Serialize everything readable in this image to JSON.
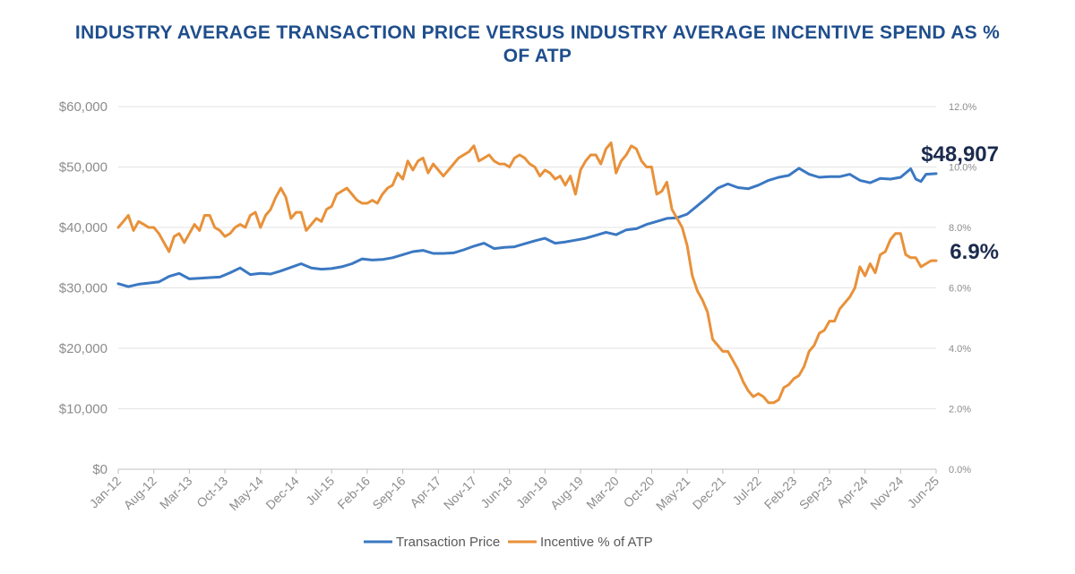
{
  "chart_data": {
    "type": "line",
    "title_line1": "INDUSTRY AVERAGE TRANSACTION PRICE VERSUS INDUSTRY AVERAGE INCENTIVE SPEND AS %",
    "title_line2": "OF ATP",
    "start_month": "2012-01",
    "end_month": "2025-06",
    "x_tick_labels": [
      "Jan-12",
      "Aug-12",
      "Mar-13",
      "Oct-13",
      "May-14",
      "Dec-14",
      "Jul-15",
      "Feb-16",
      "Sep-16",
      "Apr-17",
      "Nov-17",
      "Jun-18",
      "Jan-19",
      "Aug-19",
      "Mar-20",
      "Oct-20",
      "May-21",
      "Dec-21",
      "Jul-22",
      "Feb-23",
      "Sep-23",
      "Apr-24",
      "Nov-24",
      "Jun-25"
    ],
    "y_left": {
      "min": 0,
      "max": 60000,
      "ticks": [
        "$0",
        "$10,000",
        "$20,000",
        "$30,000",
        "$40,000",
        "$50,000",
        "$60,000"
      ]
    },
    "y_right": {
      "min": 0,
      "max": 12,
      "ticks": [
        "0.0%",
        "2.0%",
        "4.0%",
        "6.0%",
        "8.0%",
        "10.0%",
        "12.0%"
      ]
    },
    "grid": true,
    "legend_position": "bottom-center",
    "series": [
      {
        "name": "Transaction Price",
        "axis": "left",
        "color": "#3b78c2",
        "points": [
          [
            "2012-01",
            30700
          ],
          [
            "2012-03",
            30200
          ],
          [
            "2012-05",
            30600
          ],
          [
            "2012-07",
            30800
          ],
          [
            "2012-09",
            31000
          ],
          [
            "2012-11",
            31900
          ],
          [
            "2013-01",
            32400
          ],
          [
            "2013-03",
            31500
          ],
          [
            "2013-05",
            31600
          ],
          [
            "2013-07",
            31700
          ],
          [
            "2013-09",
            31800
          ],
          [
            "2013-11",
            32500
          ],
          [
            "2014-01",
            33300
          ],
          [
            "2014-03",
            32200
          ],
          [
            "2014-05",
            32400
          ],
          [
            "2014-07",
            32300
          ],
          [
            "2014-09",
            32800
          ],
          [
            "2014-11",
            33400
          ],
          [
            "2015-01",
            34000
          ],
          [
            "2015-03",
            33300
          ],
          [
            "2015-05",
            33100
          ],
          [
            "2015-07",
            33200
          ],
          [
            "2015-09",
            33500
          ],
          [
            "2015-11",
            34000
          ],
          [
            "2016-01",
            34800
          ],
          [
            "2016-03",
            34600
          ],
          [
            "2016-05",
            34700
          ],
          [
            "2016-07",
            35000
          ],
          [
            "2016-09",
            35500
          ],
          [
            "2016-11",
            36000
          ],
          [
            "2017-01",
            36200
          ],
          [
            "2017-03",
            35700
          ],
          [
            "2017-05",
            35700
          ],
          [
            "2017-07",
            35800
          ],
          [
            "2017-09",
            36300
          ],
          [
            "2017-11",
            36900
          ],
          [
            "2018-01",
            37400
          ],
          [
            "2018-03",
            36500
          ],
          [
            "2018-05",
            36700
          ],
          [
            "2018-07",
            36800
          ],
          [
            "2018-09",
            37300
          ],
          [
            "2018-11",
            37800
          ],
          [
            "2019-01",
            38200
          ],
          [
            "2019-03",
            37400
          ],
          [
            "2019-05",
            37600
          ],
          [
            "2019-07",
            37900
          ],
          [
            "2019-09",
            38200
          ],
          [
            "2019-11",
            38700
          ],
          [
            "2020-01",
            39200
          ],
          [
            "2020-03",
            38800
          ],
          [
            "2020-05",
            39600
          ],
          [
            "2020-07",
            39800
          ],
          [
            "2020-09",
            40500
          ],
          [
            "2020-11",
            41000
          ],
          [
            "2021-01",
            41500
          ],
          [
            "2021-03",
            41600
          ],
          [
            "2021-05",
            42200
          ],
          [
            "2021-07",
            43600
          ],
          [
            "2021-09",
            45000
          ],
          [
            "2021-11",
            46500
          ],
          [
            "2022-01",
            47200
          ],
          [
            "2022-03",
            46600
          ],
          [
            "2022-05",
            46400
          ],
          [
            "2022-07",
            47000
          ],
          [
            "2022-09",
            47800
          ],
          [
            "2022-11",
            48300
          ],
          [
            "2023-01",
            48600
          ],
          [
            "2023-03",
            49800
          ],
          [
            "2023-05",
            48800
          ],
          [
            "2023-07",
            48300
          ],
          [
            "2023-09",
            48400
          ],
          [
            "2023-11",
            48400
          ],
          [
            "2024-01",
            48800
          ],
          [
            "2024-03",
            47800
          ],
          [
            "2024-05",
            47400
          ],
          [
            "2024-07",
            48100
          ],
          [
            "2024-09",
            48000
          ],
          [
            "2024-11",
            48300
          ],
          [
            "2025-01",
            49700
          ],
          [
            "2025-02",
            48000
          ],
          [
            "2025-03",
            47600
          ],
          [
            "2025-04",
            48800
          ],
          [
            "2025-06",
            48907
          ]
        ]
      },
      {
        "name": "Incentive % of ATP",
        "axis": "right",
        "color": "#e8913a",
        "points": [
          [
            "2012-01",
            8.0
          ],
          [
            "2012-02",
            8.2
          ],
          [
            "2012-03",
            8.4
          ],
          [
            "2012-04",
            7.9
          ],
          [
            "2012-05",
            8.2
          ],
          [
            "2012-06",
            8.1
          ],
          [
            "2012-07",
            8.0
          ],
          [
            "2012-08",
            8.0
          ],
          [
            "2012-09",
            7.8
          ],
          [
            "2012-10",
            7.5
          ],
          [
            "2012-11",
            7.2
          ],
          [
            "2012-12",
            7.7
          ],
          [
            "2013-01",
            7.8
          ],
          [
            "2013-02",
            7.5
          ],
          [
            "2013-03",
            7.8
          ],
          [
            "2013-04",
            8.1
          ],
          [
            "2013-05",
            7.9
          ],
          [
            "2013-06",
            8.4
          ],
          [
            "2013-07",
            8.4
          ],
          [
            "2013-08",
            8.0
          ],
          [
            "2013-09",
            7.9
          ],
          [
            "2013-10",
            7.7
          ],
          [
            "2013-11",
            7.8
          ],
          [
            "2013-12",
            8.0
          ],
          [
            "2014-01",
            8.1
          ],
          [
            "2014-02",
            8.0
          ],
          [
            "2014-03",
            8.4
          ],
          [
            "2014-04",
            8.5
          ],
          [
            "2014-05",
            8.0
          ],
          [
            "2014-06",
            8.4
          ],
          [
            "2014-07",
            8.6
          ],
          [
            "2014-08",
            9.0
          ],
          [
            "2014-09",
            9.3
          ],
          [
            "2014-10",
            9.0
          ],
          [
            "2014-11",
            8.3
          ],
          [
            "2014-12",
            8.5
          ],
          [
            "2015-01",
            8.5
          ],
          [
            "2015-02",
            7.9
          ],
          [
            "2015-03",
            8.1
          ],
          [
            "2015-04",
            8.3
          ],
          [
            "2015-05",
            8.2
          ],
          [
            "2015-06",
            8.6
          ],
          [
            "2015-07",
            8.7
          ],
          [
            "2015-08",
            9.1
          ],
          [
            "2015-09",
            9.2
          ],
          [
            "2015-10",
            9.3
          ],
          [
            "2015-11",
            9.1
          ],
          [
            "2015-12",
            8.9
          ],
          [
            "2016-01",
            8.8
          ],
          [
            "2016-02",
            8.8
          ],
          [
            "2016-03",
            8.9
          ],
          [
            "2016-04",
            8.8
          ],
          [
            "2016-05",
            9.1
          ],
          [
            "2016-06",
            9.3
          ],
          [
            "2016-07",
            9.4
          ],
          [
            "2016-08",
            9.8
          ],
          [
            "2016-09",
            9.6
          ],
          [
            "2016-10",
            10.2
          ],
          [
            "2016-11",
            9.9
          ],
          [
            "2016-12",
            10.2
          ],
          [
            "2017-01",
            10.3
          ],
          [
            "2017-02",
            9.8
          ],
          [
            "2017-03",
            10.1
          ],
          [
            "2017-04",
            9.9
          ],
          [
            "2017-05",
            9.7
          ],
          [
            "2017-06",
            9.9
          ],
          [
            "2017-07",
            10.1
          ],
          [
            "2017-08",
            10.3
          ],
          [
            "2017-09",
            10.4
          ],
          [
            "2017-10",
            10.5
          ],
          [
            "2017-11",
            10.7
          ],
          [
            "2017-12",
            10.2
          ],
          [
            "2018-01",
            10.3
          ],
          [
            "2018-02",
            10.4
          ],
          [
            "2018-03",
            10.2
          ],
          [
            "2018-04",
            10.1
          ],
          [
            "2018-05",
            10.1
          ],
          [
            "2018-06",
            10.0
          ],
          [
            "2018-07",
            10.3
          ],
          [
            "2018-08",
            10.4
          ],
          [
            "2018-09",
            10.3
          ],
          [
            "2018-10",
            10.1
          ],
          [
            "2018-11",
            10.0
          ],
          [
            "2018-12",
            9.7
          ],
          [
            "2019-01",
            9.9
          ],
          [
            "2019-02",
            9.8
          ],
          [
            "2019-03",
            9.6
          ],
          [
            "2019-04",
            9.7
          ],
          [
            "2019-05",
            9.4
          ],
          [
            "2019-06",
            9.7
          ],
          [
            "2019-07",
            9.1
          ],
          [
            "2019-08",
            9.9
          ],
          [
            "2019-09",
            10.2
          ],
          [
            "2019-10",
            10.4
          ],
          [
            "2019-11",
            10.4
          ],
          [
            "2019-12",
            10.1
          ],
          [
            "2020-01",
            10.6
          ],
          [
            "2020-02",
            10.8
          ],
          [
            "2020-03",
            9.8
          ],
          [
            "2020-04",
            10.2
          ],
          [
            "2020-05",
            10.4
          ],
          [
            "2020-06",
            10.7
          ],
          [
            "2020-07",
            10.6
          ],
          [
            "2020-08",
            10.2
          ],
          [
            "2020-09",
            10.0
          ],
          [
            "2020-10",
            10.0
          ],
          [
            "2020-11",
            9.1
          ],
          [
            "2020-12",
            9.2
          ],
          [
            "2021-01",
            9.5
          ],
          [
            "2021-02",
            8.6
          ],
          [
            "2021-03",
            8.3
          ],
          [
            "2021-04",
            8.0
          ],
          [
            "2021-05",
            7.4
          ],
          [
            "2021-06",
            6.4
          ],
          [
            "2021-07",
            5.9
          ],
          [
            "2021-08",
            5.6
          ],
          [
            "2021-09",
            5.2
          ],
          [
            "2021-10",
            4.3
          ],
          [
            "2021-11",
            4.1
          ],
          [
            "2021-12",
            3.9
          ],
          [
            "2022-01",
            3.9
          ],
          [
            "2022-02",
            3.6
          ],
          [
            "2022-03",
            3.3
          ],
          [
            "2022-04",
            2.9
          ],
          [
            "2022-05",
            2.6
          ],
          [
            "2022-06",
            2.4
          ],
          [
            "2022-07",
            2.5
          ],
          [
            "2022-08",
            2.4
          ],
          [
            "2022-09",
            2.2
          ],
          [
            "2022-10",
            2.2
          ],
          [
            "2022-11",
            2.3
          ],
          [
            "2022-12",
            2.7
          ],
          [
            "2023-01",
            2.8
          ],
          [
            "2023-02",
            3.0
          ],
          [
            "2023-03",
            3.1
          ],
          [
            "2023-04",
            3.4
          ],
          [
            "2023-05",
            3.9
          ],
          [
            "2023-06",
            4.1
          ],
          [
            "2023-07",
            4.5
          ],
          [
            "2023-08",
            4.6
          ],
          [
            "2023-09",
            4.9
          ],
          [
            "2023-10",
            4.9
          ],
          [
            "2023-11",
            5.3
          ],
          [
            "2023-12",
            5.5
          ],
          [
            "2024-01",
            5.7
          ],
          [
            "2024-02",
            6.0
          ],
          [
            "2024-03",
            6.7
          ],
          [
            "2024-04",
            6.4
          ],
          [
            "2024-05",
            6.8
          ],
          [
            "2024-06",
            6.5
          ],
          [
            "2024-07",
            7.1
          ],
          [
            "2024-08",
            7.2
          ],
          [
            "2024-09",
            7.6
          ],
          [
            "2024-10",
            7.8
          ],
          [
            "2024-11",
            7.8
          ],
          [
            "2024-12",
            7.1
          ],
          [
            "2025-01",
            7.0
          ],
          [
            "2025-02",
            7.0
          ],
          [
            "2025-03",
            6.7
          ],
          [
            "2025-04",
            6.8
          ],
          [
            "2025-05",
            6.9
          ],
          [
            "2025-06",
            6.9
          ]
        ]
      }
    ],
    "annotations": [
      {
        "text": "$48,907",
        "series": "Transaction Price",
        "at": "end"
      },
      {
        "text": "6.9%",
        "series": "Incentive % of ATP",
        "at": "end"
      }
    ]
  }
}
